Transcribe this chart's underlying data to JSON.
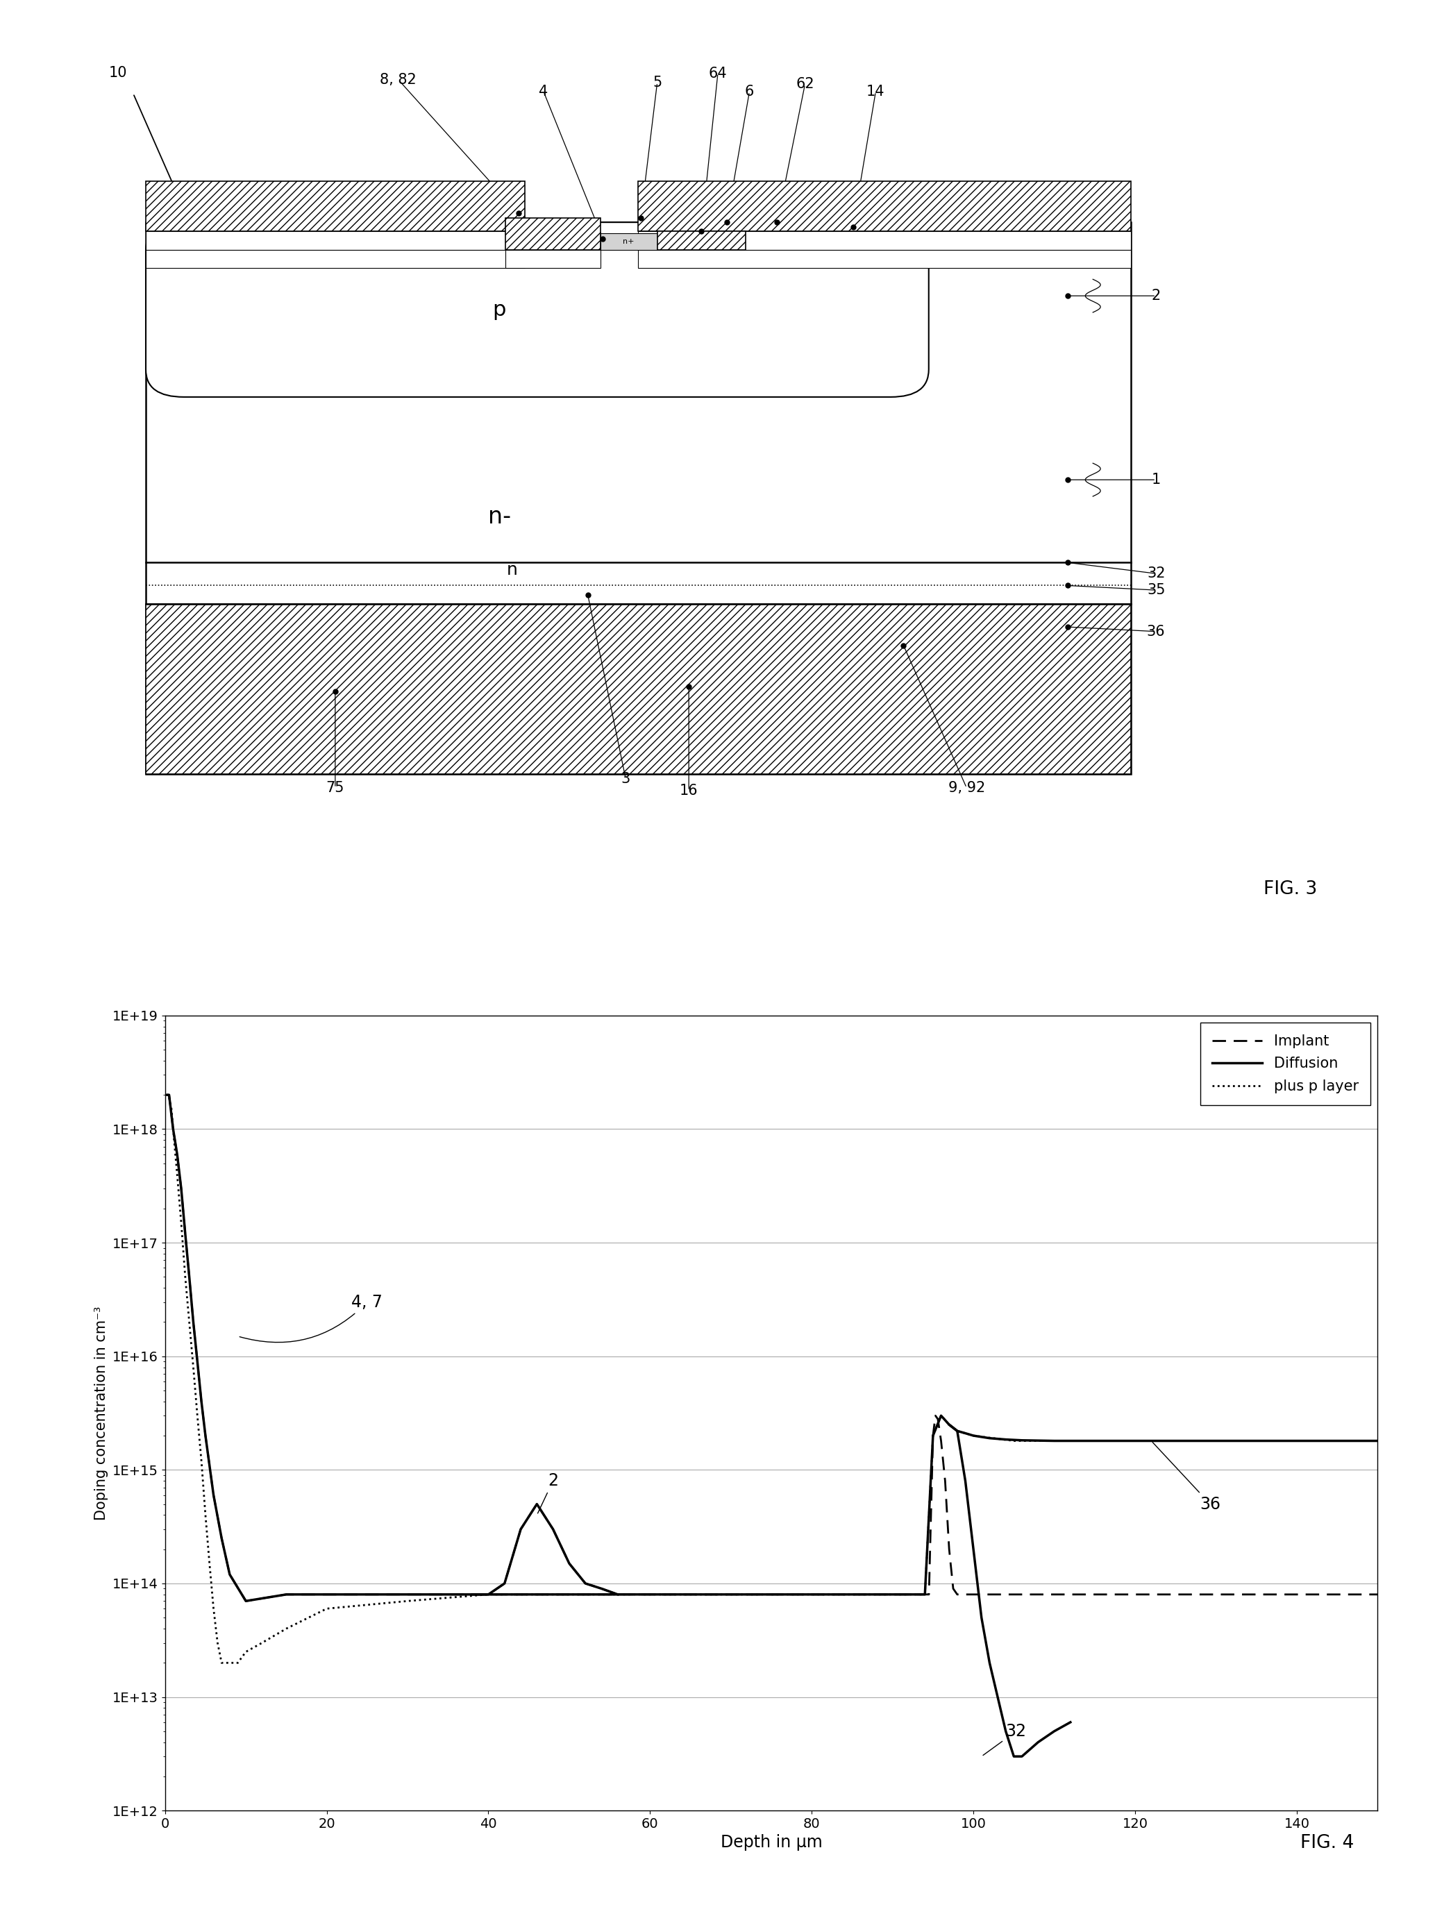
{
  "fig_width": 20.67,
  "fig_height": 27.6,
  "bg_color": "#ffffff",
  "fig4": {
    "label": "FIG. 4",
    "xlabel": "Depth in μm",
    "ylabel": "Doping concentration in cm⁻³",
    "xmin": 0,
    "xmax": 150,
    "ymin": 1000000000000.0,
    "ymax": 1e+19,
    "yticks": [
      1000000000000.0,
      10000000000000.0,
      100000000000000.0,
      1000000000000000.0,
      1e+16,
      1e+17,
      1e+18,
      1e+19
    ],
    "ytick_labels": [
      "1E+12",
      "1E+13",
      "1E+14",
      "1E+15",
      "1E+16",
      "1E+17",
      "1E+18",
      "1E+19"
    ],
    "xticks": [
      0,
      20,
      40,
      60,
      80,
      100,
      120,
      140
    ],
    "grid_color": "#aaaaaa",
    "legend_entries": [
      "Implant",
      "Diffusion",
      "plus p layer"
    ]
  }
}
